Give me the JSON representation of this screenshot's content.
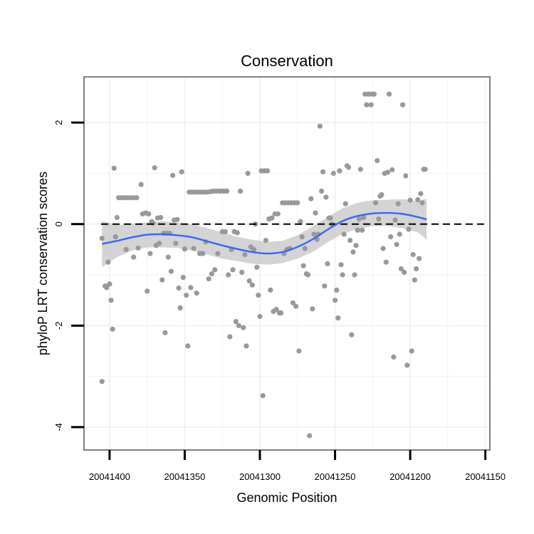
{
  "chart_data": {
    "type": "scatter",
    "title": "Conservation",
    "xlabel": "Genomic Position",
    "ylabel": "phyloP LRT conservation scores",
    "x_reversed": true,
    "xlim": [
      20041417,
      20041147
    ],
    "ylim": [
      -4.45,
      2.9
    ],
    "x_ticks": [
      20041400,
      20041350,
      20041300,
      20041250,
      20041200,
      20041150
    ],
    "x_tick_labels": [
      "20041400",
      "20041350",
      "20041300",
      "20041250",
      "20041200",
      "20041150"
    ],
    "y_ticks": [
      -4,
      -2,
      0,
      2
    ],
    "y_tick_labels": [
      "-4",
      "-2",
      "0",
      "2"
    ],
    "grid": true,
    "reference_line": {
      "y": 0,
      "style": "dashed"
    },
    "points": [
      {
        "x": 20041405,
        "y": -3.1
      },
      {
        "x": 20041405,
        "y": -0.28
      },
      {
        "x": 20041403,
        "y": -1.22
      },
      {
        "x": 20041402,
        "y": -1.25
      },
      {
        "x": 20041401,
        "y": -0.75
      },
      {
        "x": 20041400,
        "y": -1.18
      },
      {
        "x": 20041399,
        "y": -1.5
      },
      {
        "x": 20041398,
        "y": -2.07
      },
      {
        "x": 20041397,
        "y": 1.1
      },
      {
        "x": 20041396,
        "y": -0.25
      },
      {
        "x": 20041395,
        "y": 0.13
      },
      {
        "x": 20041394,
        "y": 0.52
      },
      {
        "x": 20041392,
        "y": 0.52
      },
      {
        "x": 20041390,
        "y": 0.52
      },
      {
        "x": 20041389,
        "y": -0.5
      },
      {
        "x": 20041388,
        "y": 0.52
      },
      {
        "x": 20041386,
        "y": 0.52
      },
      {
        "x": 20041384,
        "y": 0.52
      },
      {
        "x": 20041384,
        "y": -0.65
      },
      {
        "x": 20041382,
        "y": 0.52
      },
      {
        "x": 20041381,
        "y": -0.47
      },
      {
        "x": 20041379,
        "y": 0.78
      },
      {
        "x": 20041378,
        "y": 0.2
      },
      {
        "x": 20041376,
        "y": 0.22
      },
      {
        "x": 20041375,
        "y": -1.32
      },
      {
        "x": 20041374,
        "y": 0.2
      },
      {
        "x": 20041373,
        "y": -0.58
      },
      {
        "x": 20041372,
        "y": 0.05
      },
      {
        "x": 20041371,
        "y": 0.02
      },
      {
        "x": 20041370,
        "y": 1.11
      },
      {
        "x": 20041369,
        "y": -0.42
      },
      {
        "x": 20041368,
        "y": 0.12
      },
      {
        "x": 20041367,
        "y": -0.38
      },
      {
        "x": 20041366,
        "y": 0.13
      },
      {
        "x": 20041365,
        "y": -1.1
      },
      {
        "x": 20041364,
        "y": -0.18
      },
      {
        "x": 20041363,
        "y": -2.14
      },
      {
        "x": 20041362,
        "y": -0.18
      },
      {
        "x": 20041361,
        "y": -0.65
      },
      {
        "x": 20041360,
        "y": -0.18
      },
      {
        "x": 20041359,
        "y": -0.93
      },
      {
        "x": 20041358,
        "y": 0.96
      },
      {
        "x": 20041357,
        "y": 0.08
      },
      {
        "x": 20041356,
        "y": -0.38
      },
      {
        "x": 20041355,
        "y": 0.09
      },
      {
        "x": 20041354,
        "y": -1.26
      },
      {
        "x": 20041353,
        "y": -1.65
      },
      {
        "x": 20041352,
        "y": 1.03
      },
      {
        "x": 20041351,
        "y": -1.05
      },
      {
        "x": 20041350,
        "y": -0.49
      },
      {
        "x": 20041349,
        "y": -1.4
      },
      {
        "x": 20041348,
        "y": -2.4
      },
      {
        "x": 20041347,
        "y": 0.63
      },
      {
        "x": 20041346,
        "y": -1.25
      },
      {
        "x": 20041345,
        "y": 0.63
      },
      {
        "x": 20041344,
        "y": -0.48
      },
      {
        "x": 20041343,
        "y": 0.63
      },
      {
        "x": 20041342,
        "y": -1.36
      },
      {
        "x": 20041341,
        "y": 0.63
      },
      {
        "x": 20041340,
        "y": -0.58
      },
      {
        "x": 20041339,
        "y": 0.63
      },
      {
        "x": 20041338,
        "y": -0.58
      },
      {
        "x": 20041337,
        "y": 0.63
      },
      {
        "x": 20041336,
        "y": -0.35
      },
      {
        "x": 20041335,
        "y": 0.63
      },
      {
        "x": 20041334,
        "y": -1.08
      },
      {
        "x": 20041333,
        "y": 0.64
      },
      {
        "x": 20041332,
        "y": -0.98
      },
      {
        "x": 20041331,
        "y": 0.65
      },
      {
        "x": 20041330,
        "y": -0.9
      },
      {
        "x": 20041329,
        "y": 0.65
      },
      {
        "x": 20041328,
        "y": -0.58
      },
      {
        "x": 20041327,
        "y": 0.65
      },
      {
        "x": 20041326,
        "y": 0.65
      },
      {
        "x": 20041325,
        "y": -0.15
      },
      {
        "x": 20041324,
        "y": 0.65
      },
      {
        "x": 20041323,
        "y": -0.15
      },
      {
        "x": 20041322,
        "y": 0.65
      },
      {
        "x": 20041321,
        "y": -1.0
      },
      {
        "x": 20041320,
        "y": -2.22
      },
      {
        "x": 20041319,
        "y": -0.5
      },
      {
        "x": 20041318,
        "y": -0.9
      },
      {
        "x": 20041317,
        "y": -0.15
      },
      {
        "x": 20041316,
        "y": -1.92
      },
      {
        "x": 20041315,
        "y": -0.17
      },
      {
        "x": 20041314,
        "y": -2.0
      },
      {
        "x": 20041313,
        "y": 0.65
      },
      {
        "x": 20041312,
        "y": -0.95
      },
      {
        "x": 20041311,
        "y": -2.04
      },
      {
        "x": 20041310,
        "y": -0.6
      },
      {
        "x": 20041309,
        "y": -2.4
      },
      {
        "x": 20041308,
        "y": 1.0
      },
      {
        "x": 20041307,
        "y": -1.12
      },
      {
        "x": 20041306,
        "y": -0.45
      },
      {
        "x": 20041305,
        "y": -1.2
      },
      {
        "x": 20041304,
        "y": -0.5
      },
      {
        "x": 20041303,
        "y": 0.0
      },
      {
        "x": 20041302,
        "y": -0.85
      },
      {
        "x": 20041301,
        "y": -1.4
      },
      {
        "x": 20041300,
        "y": -1.82
      },
      {
        "x": 20041299,
        "y": 1.05
      },
      {
        "x": 20041298,
        "y": -3.38
      },
      {
        "x": 20041297,
        "y": 1.05
      },
      {
        "x": 20041296,
        "y": -0.32
      },
      {
        "x": 20041295,
        "y": 1.05
      },
      {
        "x": 20041294,
        "y": 0.1
      },
      {
        "x": 20041293,
        "y": -1.3
      },
      {
        "x": 20041292,
        "y": 0.12
      },
      {
        "x": 20041291,
        "y": -1.72
      },
      {
        "x": 20041290,
        "y": 0.2
      },
      {
        "x": 20041289,
        "y": -1.68
      },
      {
        "x": 20041288,
        "y": 0.2
      },
      {
        "x": 20041287,
        "y": -1.75
      },
      {
        "x": 20041286,
        "y": -1.75
      },
      {
        "x": 20041285,
        "y": 0.42
      },
      {
        "x": 20041284,
        "y": -0.58
      },
      {
        "x": 20041283,
        "y": 0.42
      },
      {
        "x": 20041282,
        "y": -0.5
      },
      {
        "x": 20041281,
        "y": 0.42
      },
      {
        "x": 20041280,
        "y": -0.48
      },
      {
        "x": 20041279,
        "y": 0.42
      },
      {
        "x": 20041278,
        "y": -1.55
      },
      {
        "x": 20041277,
        "y": 0.42
      },
      {
        "x": 20041276,
        "y": -1.62
      },
      {
        "x": 20041275,
        "y": 0.42
      },
      {
        "x": 20041274,
        "y": -2.5
      },
      {
        "x": 20041273,
        "y": 0.05
      },
      {
        "x": 20041272,
        "y": -0.25
      },
      {
        "x": 20041271,
        "y": -0.82
      },
      {
        "x": 20041270,
        "y": -0.48
      },
      {
        "x": 20041269,
        "y": -0.98
      },
      {
        "x": 20041268,
        "y": -1.0
      },
      {
        "x": 20041267,
        "y": -4.17
      },
      {
        "x": 20041266,
        "y": 0.5
      },
      {
        "x": 20041265,
        "y": -1.67
      },
      {
        "x": 20041264,
        "y": -0.2
      },
      {
        "x": 20041263,
        "y": 0.22
      },
      {
        "x": 20041262,
        "y": -0.3
      },
      {
        "x": 20041261,
        "y": -0.2
      },
      {
        "x": 20041260,
        "y": 1.93
      },
      {
        "x": 20041259,
        "y": 0.65
      },
      {
        "x": 20041258,
        "y": 1.03
      },
      {
        "x": 20041257,
        "y": -1.22
      },
      {
        "x": 20041256,
        "y": 0.53
      },
      {
        "x": 20041255,
        "y": -0.78
      },
      {
        "x": 20041254,
        "y": 0.12
      },
      {
        "x": 20041253,
        "y": 0.12
      },
      {
        "x": 20041252,
        "y": 0.0
      },
      {
        "x": 20041251,
        "y": 1.0
      },
      {
        "x": 20041250,
        "y": -1.5
      },
      {
        "x": 20041249,
        "y": -1.3
      },
      {
        "x": 20041248,
        "y": -1.85
      },
      {
        "x": 20041247,
        "y": 1.05
      },
      {
        "x": 20041246,
        "y": -0.8
      },
      {
        "x": 20041245,
        "y": -1.0
      },
      {
        "x": 20041244,
        "y": -0.2
      },
      {
        "x": 20041243,
        "y": 0.4
      },
      {
        "x": 20041242,
        "y": 1.15
      },
      {
        "x": 20041241,
        "y": 1.12
      },
      {
        "x": 20041240,
        "y": -0.32
      },
      {
        "x": 20041239,
        "y": -2.18
      },
      {
        "x": 20041238,
        "y": -0.55
      },
      {
        "x": 20041237,
        "y": -1.0
      },
      {
        "x": 20041236,
        "y": -0.42
      },
      {
        "x": 20041235,
        "y": -0.12
      },
      {
        "x": 20041234,
        "y": 0.1
      },
      {
        "x": 20041233,
        "y": 1.08
      },
      {
        "x": 20041232,
        "y": -0.12
      },
      {
        "x": 20041231,
        "y": 0.13
      },
      {
        "x": 20041230,
        "y": 2.56
      },
      {
        "x": 20041229,
        "y": 2.35
      },
      {
        "x": 20041228,
        "y": 2.56
      },
      {
        "x": 20041227,
        "y": 2.56
      },
      {
        "x": 20041226,
        "y": 2.35
      },
      {
        "x": 20041225,
        "y": 2.56
      },
      {
        "x": 20041224,
        "y": 2.56
      },
      {
        "x": 20041223,
        "y": 0.42
      },
      {
        "x": 20041222,
        "y": 1.25
      },
      {
        "x": 20041221,
        "y": 0.1
      },
      {
        "x": 20041220,
        "y": 0.55
      },
      {
        "x": 20041219,
        "y": 0.58
      },
      {
        "x": 20041218,
        "y": -0.48
      },
      {
        "x": 20041217,
        "y": 1.0
      },
      {
        "x": 20041216,
        "y": -0.75
      },
      {
        "x": 20041215,
        "y": 1.02
      },
      {
        "x": 20041214,
        "y": 2.56
      },
      {
        "x": 20041213,
        "y": -0.25
      },
      {
        "x": 20041212,
        "y": 1.07
      },
      {
        "x": 20041211,
        "y": -2.62
      },
      {
        "x": 20041210,
        "y": 0.08
      },
      {
        "x": 20041209,
        "y": -0.4
      },
      {
        "x": 20041208,
        "y": 0.4
      },
      {
        "x": 20041207,
        "y": -0.2
      },
      {
        "x": 20041206,
        "y": -0.88
      },
      {
        "x": 20041205,
        "y": 2.35
      },
      {
        "x": 20041204,
        "y": -0.95
      },
      {
        "x": 20041203,
        "y": 0.95
      },
      {
        "x": 20041202,
        "y": -2.78
      },
      {
        "x": 20041201,
        "y": -0.1
      },
      {
        "x": 20041200,
        "y": 0.47
      },
      {
        "x": 20041199,
        "y": -2.5
      },
      {
        "x": 20041198,
        "y": -0.6
      },
      {
        "x": 20041197,
        "y": -1.1
      },
      {
        "x": 20041196,
        "y": -0.88
      },
      {
        "x": 20041195,
        "y": 0.48
      },
      {
        "x": 20041194,
        "y": -0.68
      },
      {
        "x": 20041193,
        "y": 0.6
      },
      {
        "x": 20041192,
        "y": 0.42
      },
      {
        "x": 20041191,
        "y": 1.08
      },
      {
        "x": 20041190,
        "y": 1.08
      }
    ],
    "smooth_fit": {
      "method": "loess",
      "color": "#3366ff",
      "ribbon_color": "#bdbdbd",
      "x": [
        20041405,
        20041395,
        20041385,
        20041375,
        20041365,
        20041355,
        20041345,
        20041335,
        20041325,
        20041315,
        20041305,
        20041295,
        20041285,
        20041275,
        20041265,
        20041255,
        20041245,
        20041235,
        20041225,
        20041215,
        20041205,
        20041195,
        20041189
      ],
      "y": [
        -0.39,
        -0.33,
        -0.26,
        -0.21,
        -0.2,
        -0.22,
        -0.26,
        -0.34,
        -0.42,
        -0.49,
        -0.55,
        -0.58,
        -0.55,
        -0.45,
        -0.3,
        -0.11,
        0.06,
        0.16,
        0.21,
        0.22,
        0.2,
        0.14,
        0.09
      ],
      "lower": [
        -0.85,
        -0.65,
        -0.52,
        -0.46,
        -0.46,
        -0.47,
        -0.52,
        -0.6,
        -0.68,
        -0.73,
        -0.78,
        -0.8,
        -0.77,
        -0.68,
        -0.55,
        -0.36,
        -0.19,
        -0.1,
        -0.04,
        -0.04,
        -0.08,
        -0.16,
        -0.31
      ],
      "upper": [
        0.06,
        -0.02,
        0.0,
        0.03,
        0.06,
        0.03,
        0.0,
        -0.08,
        -0.16,
        -0.25,
        -0.31,
        -0.35,
        -0.33,
        -0.22,
        -0.05,
        0.14,
        0.31,
        0.42,
        0.47,
        0.48,
        0.49,
        0.45,
        0.5
      ]
    },
    "colors": {
      "points": "#999999",
      "frame": "#808080",
      "grid": "#f2f2f2",
      "reference": "#000000"
    }
  }
}
